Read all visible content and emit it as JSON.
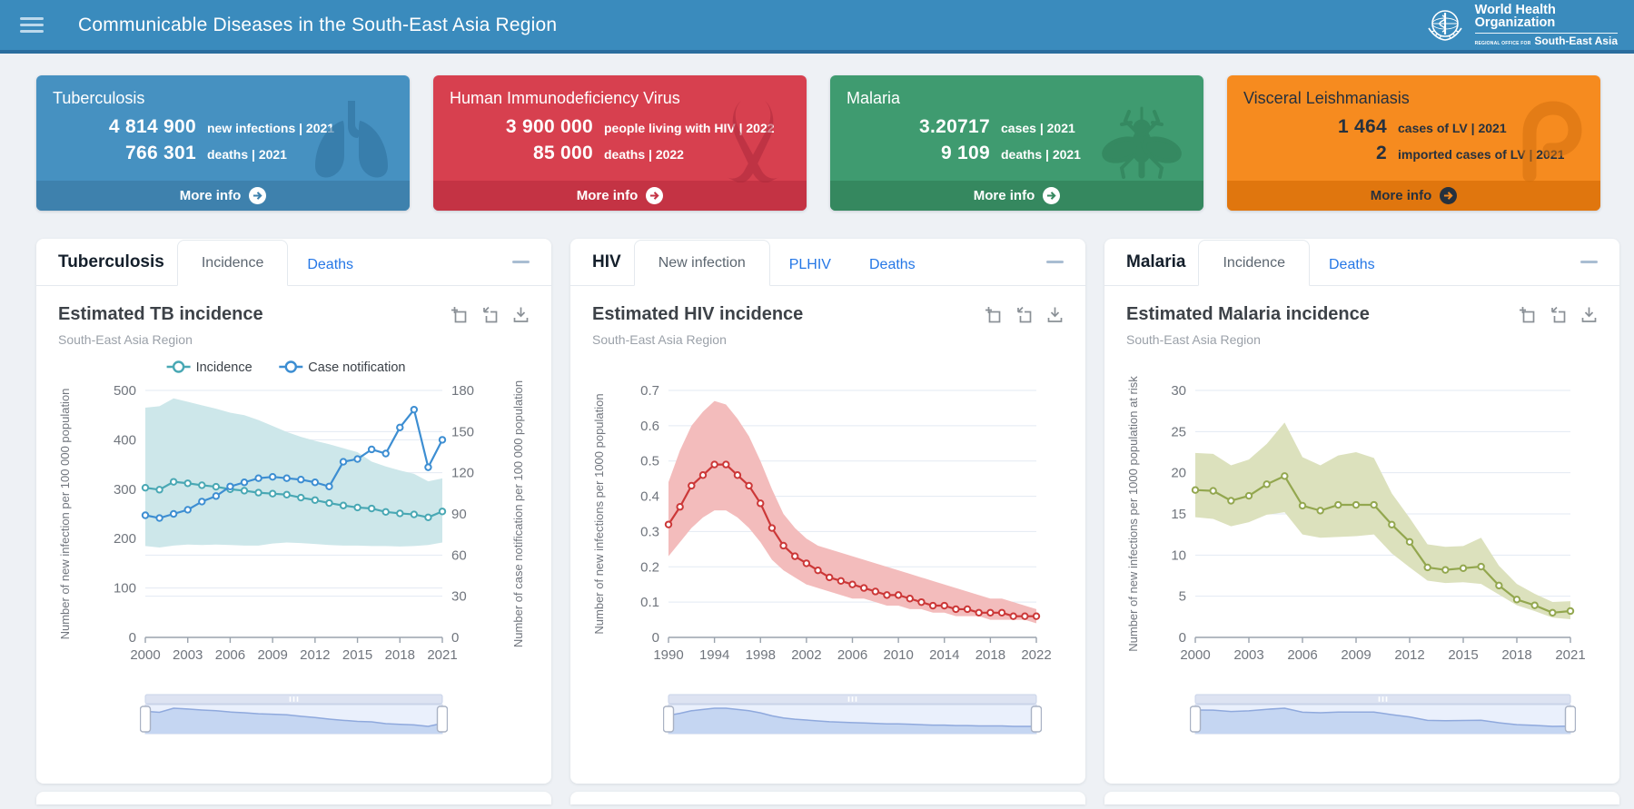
{
  "header": {
    "title": "Communicable Diseases in the South-East Asia Region",
    "logo": {
      "org_line1": "World Health",
      "org_line2": "Organization",
      "office_prefix": "REGIONAL OFFICE FOR",
      "office_name": "South-East Asia"
    }
  },
  "cards": [
    {
      "title": "Tuberculosis",
      "stats": [
        {
          "value": "4 814 900",
          "label": "new infections | 2021"
        },
        {
          "value": "766 301",
          "label": "deaths | 2021"
        }
      ],
      "more_label": "More info",
      "bg": "#4691c1",
      "footer_bg": "#3e81ad",
      "text": "#ffffff",
      "icon_color": "#2e6f9c",
      "arrow_bg": "#ffffff",
      "arrow_fg": "#3e81ad"
    },
    {
      "title": "Human Immunodeficiency Virus",
      "stats": [
        {
          "value": "3 900 000",
          "label": "people living with HIV | 2022"
        },
        {
          "value": "85 000",
          "label": "deaths | 2022"
        }
      ],
      "more_label": "More info",
      "bg": "#d7404f",
      "footer_bg": "#c43344",
      "text": "#ffffff",
      "icon_color": "#ad2a3c",
      "arrow_bg": "#ffffff",
      "arrow_fg": "#c43344"
    },
    {
      "title": "Malaria",
      "stats": [
        {
          "value": "3.20717",
          "label": "cases | 2021"
        },
        {
          "value": "9 109",
          "label": "deaths | 2021"
        }
      ],
      "more_label": "More info",
      "bg": "#3f9b70",
      "footer_bg": "#35885f",
      "text": "#ffffff",
      "icon_color": "#2d7c55",
      "arrow_bg": "#ffffff",
      "arrow_fg": "#35885f"
    },
    {
      "title": "Visceral Leishmaniasis",
      "stats": [
        {
          "value": "1 464",
          "label": "cases of LV | 2021"
        },
        {
          "value": "2",
          "label": "imported cases of LV | 2021"
        }
      ],
      "more_label": "More info",
      "bg": "#f68b1f",
      "footer_bg": "#e0760e",
      "text": "#26313e",
      "icon_color": "#d4710f",
      "arrow_bg": "#26313e",
      "arrow_fg": "#f68b1f"
    }
  ],
  "panels": [
    {
      "name": "Tuberculosis",
      "tabs": [
        {
          "label": "Incidence",
          "active": true
        },
        {
          "label": "Deaths",
          "active": false
        }
      ]
    },
    {
      "name": "HIV",
      "tabs": [
        {
          "label": "New infection",
          "active": true
        },
        {
          "label": "PLHIV",
          "active": false
        },
        {
          "label": "Deaths",
          "active": false
        }
      ]
    },
    {
      "name": "Malaria",
      "tabs": [
        {
          "label": "Incidence",
          "active": true
        },
        {
          "label": "Deaths",
          "active": false
        }
      ]
    }
  ],
  "chart_data": [
    {
      "type": "line",
      "title": "Estimated TB incidence",
      "subtitle": "South-East Asia Region",
      "xlim": [
        2000,
        2021
      ],
      "xticks": [
        2000,
        2003,
        2006,
        2009,
        2012,
        2015,
        2018,
        2021
      ],
      "ylabel_left": "Number of new infection per 100 000 population",
      "ylabel_right": "Number of case notification per 100 000 population",
      "ylim_left": [
        0,
        500
      ],
      "yticks_left": [
        0,
        100,
        200,
        300,
        400,
        500
      ],
      "ylim_right": [
        0,
        180
      ],
      "yticks_right": [
        0,
        30,
        60,
        90,
        120,
        150,
        180
      ],
      "grid": true,
      "legend_position": "top",
      "series": [
        {
          "name": "Incidence",
          "axis": "left",
          "color": "#49a8b4",
          "band_color": "#cde7ea",
          "values": [
            303,
            299,
            315,
            312,
            308,
            305,
            300,
            297,
            293,
            291,
            289,
            283,
            278,
            272,
            267,
            263,
            261,
            254,
            251,
            249,
            243,
            255
          ],
          "band_lower": [
            185,
            182,
            186,
            188,
            187,
            188,
            187,
            186,
            186,
            190,
            192,
            191,
            189,
            187,
            186,
            186,
            185,
            185,
            184,
            185,
            187,
            192
          ],
          "band_upper": [
            465,
            468,
            484,
            477,
            470,
            463,
            455,
            450,
            440,
            428,
            416,
            406,
            398,
            391,
            383,
            375,
            356,
            346,
            338,
            331,
            316,
            322
          ]
        },
        {
          "name": "Case notification",
          "axis": "right",
          "color": "#3d8ed2",
          "values": [
            89,
            87,
            90,
            93,
            99,
            103,
            110,
            113,
            116,
            117,
            116,
            115,
            113,
            110,
            128,
            130,
            137,
            134,
            153,
            166,
            124,
            144
          ]
        }
      ]
    },
    {
      "type": "line",
      "title": "Estimated HIV incidence",
      "subtitle": "South-East Asia Region",
      "xlim": [
        1990,
        2022
      ],
      "xticks": [
        1990,
        1994,
        1998,
        2002,
        2006,
        2010,
        2014,
        2018,
        2022
      ],
      "ylabel_left": "Number of new infections per 1000 population",
      "ylim_left": [
        0,
        0.7
      ],
      "yticks_left": [
        0,
        0.1,
        0.2,
        0.3,
        0.4,
        0.5,
        0.6,
        0.7
      ],
      "grid": true,
      "legend_position": "none",
      "series": [
        {
          "name": "Incidence",
          "axis": "left",
          "color": "#cc3838",
          "band_color": "#f3bcbc",
          "values": [
            0.32,
            0.37,
            0.43,
            0.46,
            0.49,
            0.49,
            0.46,
            0.43,
            0.38,
            0.31,
            0.26,
            0.23,
            0.21,
            0.19,
            0.17,
            0.16,
            0.15,
            0.14,
            0.13,
            0.12,
            0.12,
            0.11,
            0.1,
            0.09,
            0.09,
            0.08,
            0.08,
            0.07,
            0.07,
            0.07,
            0.06,
            0.06,
            0.06
          ],
          "band_lower": [
            0.23,
            0.27,
            0.31,
            0.34,
            0.36,
            0.36,
            0.34,
            0.31,
            0.27,
            0.22,
            0.19,
            0.17,
            0.15,
            0.14,
            0.13,
            0.12,
            0.11,
            0.11,
            0.1,
            0.09,
            0.09,
            0.08,
            0.08,
            0.07,
            0.07,
            0.06,
            0.06,
            0.06,
            0.05,
            0.05,
            0.05,
            0.05,
            0.04
          ],
          "band_upper": [
            0.44,
            0.53,
            0.6,
            0.64,
            0.67,
            0.66,
            0.62,
            0.57,
            0.5,
            0.42,
            0.35,
            0.31,
            0.28,
            0.26,
            0.25,
            0.24,
            0.23,
            0.22,
            0.21,
            0.2,
            0.19,
            0.18,
            0.17,
            0.16,
            0.15,
            0.14,
            0.13,
            0.12,
            0.11,
            0.11,
            0.1,
            0.09,
            0.08
          ]
        }
      ]
    },
    {
      "type": "line",
      "title": "Estimated Malaria incidence",
      "subtitle": "South-East Asia Region",
      "xlim": [
        2000,
        2021
      ],
      "xticks": [
        2000,
        2003,
        2006,
        2009,
        2012,
        2015,
        2018,
        2021
      ],
      "ylabel_left": "Number of new infections per 1000 population at risk",
      "ylim_left": [
        0,
        30
      ],
      "yticks_left": [
        0,
        5,
        10,
        15,
        20,
        25,
        30
      ],
      "grid": true,
      "legend_position": "none",
      "series": [
        {
          "name": "Incidence",
          "axis": "left",
          "color": "#93a74f",
          "band_color": "#dce1bd",
          "values": [
            17.9,
            17.8,
            16.6,
            17.2,
            18.6,
            19.6,
            16.0,
            15.4,
            16.1,
            16.1,
            16.1,
            13.7,
            11.6,
            8.5,
            8.2,
            8.4,
            8.6,
            6.3,
            4.6,
            3.9,
            3.0,
            3.2
          ],
          "band_lower": [
            14.6,
            14.4,
            13.5,
            14.0,
            14.9,
            15.2,
            12.5,
            12.1,
            12.2,
            12.3,
            12.5,
            10.2,
            8.5,
            6.9,
            6.6,
            6.7,
            6.5,
            5.2,
            3.9,
            3.2,
            2.4,
            2.2
          ],
          "band_upper": [
            22.4,
            22.3,
            20.9,
            21.6,
            23.5,
            26.1,
            21.9,
            20.9,
            22.1,
            22.5,
            21.8,
            17.5,
            14.5,
            11.3,
            11.0,
            11.1,
            12.1,
            8.7,
            6.5,
            5.3,
            4.3,
            4.4
          ]
        }
      ]
    }
  ]
}
